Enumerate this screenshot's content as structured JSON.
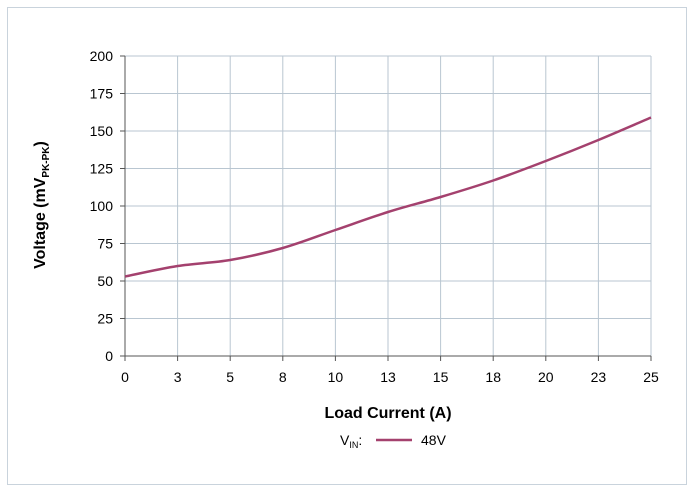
{
  "chart_data": {
    "type": "line",
    "x_tick_labels": [
      "0",
      "3",
      "5",
      "8",
      "10",
      "13",
      "15",
      "18",
      "20",
      "23",
      "25"
    ],
    "y_tick_labels": [
      "0",
      "25",
      "50",
      "75",
      "100",
      "125",
      "150",
      "175",
      "200"
    ],
    "xlim": [
      0,
      25
    ],
    "ylim": [
      0,
      200
    ],
    "grid": true,
    "xlabel": "Load Current (A)",
    "ylabel": {
      "main": "Voltage (mV",
      "subscript": "PK-PK",
      "close": ")"
    },
    "legend": {
      "placement": "bottom-center",
      "prefix_main": "V",
      "prefix_subscript": "IN",
      "prefix_suffix": ":"
    },
    "series": [
      {
        "name": "48V",
        "color": "#a4416e",
        "x": [
          0,
          2.5,
          5,
          7.5,
          10,
          12.5,
          15,
          17.5,
          20,
          22.5,
          25
        ],
        "y": [
          53,
          60,
          64,
          72,
          84,
          96,
          106,
          117,
          130,
          144,
          159
        ]
      }
    ]
  }
}
